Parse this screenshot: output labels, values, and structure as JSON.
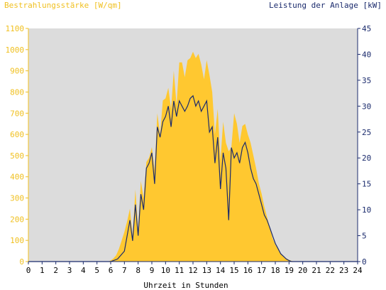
{
  "chart_data": {
    "type": "area",
    "title_left": "Bestrahlungsstärke [W/qm]",
    "title_right": "Leistung der Anlage [kW]",
    "xlabel": "Uhrzeit in Stunden",
    "xlim": [
      0,
      24
    ],
    "ylim_left": [
      0,
      1100
    ],
    "ylim_right": [
      0,
      45
    ],
    "x_ticks": [
      "0",
      "1",
      "2",
      "3",
      "4",
      "5",
      "6",
      "7",
      "8",
      "9",
      "10",
      "11",
      "12",
      "13",
      "14",
      "15",
      "16",
      "17",
      "18",
      "19",
      "20",
      "21",
      "22",
      "23",
      "24"
    ],
    "y_left_ticks": [
      "0",
      "100",
      "200",
      "300",
      "400",
      "500",
      "600",
      "700",
      "800",
      "900",
      "1000",
      "1100"
    ],
    "y_right_ticks": [
      "0",
      "5",
      "10",
      "15",
      "20",
      "25",
      "30",
      "35",
      "40",
      "45"
    ],
    "grid": false,
    "colors": {
      "plot_bg": "#dcdcdc",
      "irradiance": "#ffc830",
      "power": "#1a2a6c",
      "left_axis": "#f0c020",
      "right_axis": "#1a2a6c"
    },
    "series": [
      {
        "axis": "left",
        "style": "area",
        "x": [
          0,
          5.8,
          6.0,
          6.2,
          6.4,
          6.6,
          6.8,
          7.0,
          7.2,
          7.4,
          7.6,
          7.8,
          8.0,
          8.2,
          8.4,
          8.6,
          8.8,
          9.0,
          9.2,
          9.4,
          9.6,
          9.8,
          10.0,
          10.2,
          10.4,
          10.6,
          10.8,
          11.0,
          11.2,
          11.4,
          11.6,
          11.8,
          12.0,
          12.2,
          12.4,
          12.6,
          12.8,
          13.0,
          13.2,
          13.4,
          13.6,
          13.8,
          14.0,
          14.2,
          14.4,
          14.6,
          14.8,
          15.0,
          15.2,
          15.4,
          15.6,
          15.8,
          16.0,
          16.2,
          16.4,
          16.6,
          16.8,
          17.0,
          17.2,
          17.4,
          17.6,
          17.8,
          18.0,
          18.2,
          18.4,
          18.6,
          18.8,
          19.0,
          19.2,
          19.4,
          19.6,
          19.8,
          20.0,
          24
        ],
        "values": [
          0,
          0,
          5,
          15,
          30,
          60,
          100,
          140,
          190,
          250,
          120,
          340,
          150,
          380,
          300,
          470,
          490,
          540,
          430,
          700,
          600,
          760,
          770,
          820,
          720,
          900,
          740,
          940,
          940,
          870,
          950,
          960,
          990,
          960,
          980,
          930,
          860,
          950,
          880,
          800,
          600,
          720,
          480,
          660,
          560,
          520,
          540,
          700,
          650,
          560,
          640,
          650,
          600,
          560,
          500,
          440,
          370,
          320,
          260,
          210,
          160,
          110,
          80,
          60,
          40,
          25,
          15,
          8,
          3,
          0,
          0,
          0,
          0,
          0
        ]
      },
      {
        "axis": "right",
        "style": "line",
        "x": [
          0,
          6.0,
          6.5,
          7.0,
          7.2,
          7.4,
          7.6,
          7.8,
          8.0,
          8.2,
          8.4,
          8.6,
          8.8,
          9.0,
          9.2,
          9.4,
          9.6,
          9.8,
          10.0,
          10.2,
          10.4,
          10.6,
          10.8,
          11.0,
          11.2,
          11.4,
          11.6,
          11.8,
          12.0,
          12.2,
          12.4,
          12.6,
          12.8,
          13.0,
          13.2,
          13.4,
          13.6,
          13.8,
          14.0,
          14.2,
          14.4,
          14.6,
          14.8,
          15.0,
          15.2,
          15.4,
          15.6,
          15.8,
          16.0,
          16.2,
          16.4,
          16.6,
          16.8,
          17.0,
          17.2,
          17.4,
          17.6,
          17.8,
          18.0,
          18.2,
          18.4,
          18.6,
          18.8,
          19.0,
          19.2,
          19.4,
          19.6,
          20.0,
          24
        ],
        "values": [
          0,
          0,
          0.5,
          2,
          5,
          8,
          4,
          11,
          5,
          13,
          10,
          18,
          19,
          21,
          15,
          26,
          24,
          27,
          28,
          30,
          26,
          31,
          28,
          31,
          30,
          29,
          30,
          31.5,
          32,
          30,
          31,
          29,
          30,
          31,
          25,
          26,
          19,
          24,
          14,
          21,
          18,
          8,
          22,
          20,
          21,
          19,
          22,
          23,
          21,
          18,
          16,
          15,
          13,
          11,
          9,
          8,
          6.5,
          5,
          3.5,
          2.5,
          1.5,
          1,
          0.5,
          0.2,
          0,
          0,
          0,
          0,
          0
        ]
      }
    ]
  }
}
